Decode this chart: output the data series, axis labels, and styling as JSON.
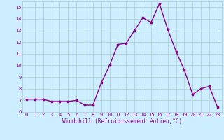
{
  "x": [
    0,
    1,
    2,
    3,
    4,
    5,
    6,
    7,
    8,
    9,
    10,
    11,
    12,
    13,
    14,
    15,
    16,
    17,
    18,
    19,
    20,
    21,
    22,
    23
  ],
  "y": [
    7.1,
    7.1,
    7.1,
    6.9,
    6.9,
    6.9,
    7.0,
    6.6,
    6.6,
    8.5,
    10.0,
    11.8,
    11.9,
    13.0,
    14.1,
    13.7,
    15.3,
    13.1,
    11.2,
    9.6,
    7.5,
    8.0,
    8.2,
    6.4
  ],
  "line_color": "#880088",
  "marker_color": "#880088",
  "bg_color": "#cceeff",
  "grid_color": "#aacccc",
  "xlabel": "Windchill (Refroidissement éolien,°C)",
  "xlabel_color": "#880088",
  "xlim": [
    -0.5,
    23.5
  ],
  "ylim": [
    6,
    15.5
  ],
  "yticks": [
    6,
    7,
    8,
    9,
    10,
    11,
    12,
    13,
    14,
    15
  ],
  "xtick_labels": [
    "0",
    "1",
    "2",
    "3",
    "4",
    "5",
    "6",
    "7",
    "8",
    "9",
    "10",
    "11",
    "12",
    "13",
    "14",
    "15",
    "16",
    "17",
    "18",
    "19",
    "20",
    "21",
    "22",
    "23"
  ],
  "tick_color": "#880088",
  "linewidth": 1.0,
  "markersize": 2.5
}
